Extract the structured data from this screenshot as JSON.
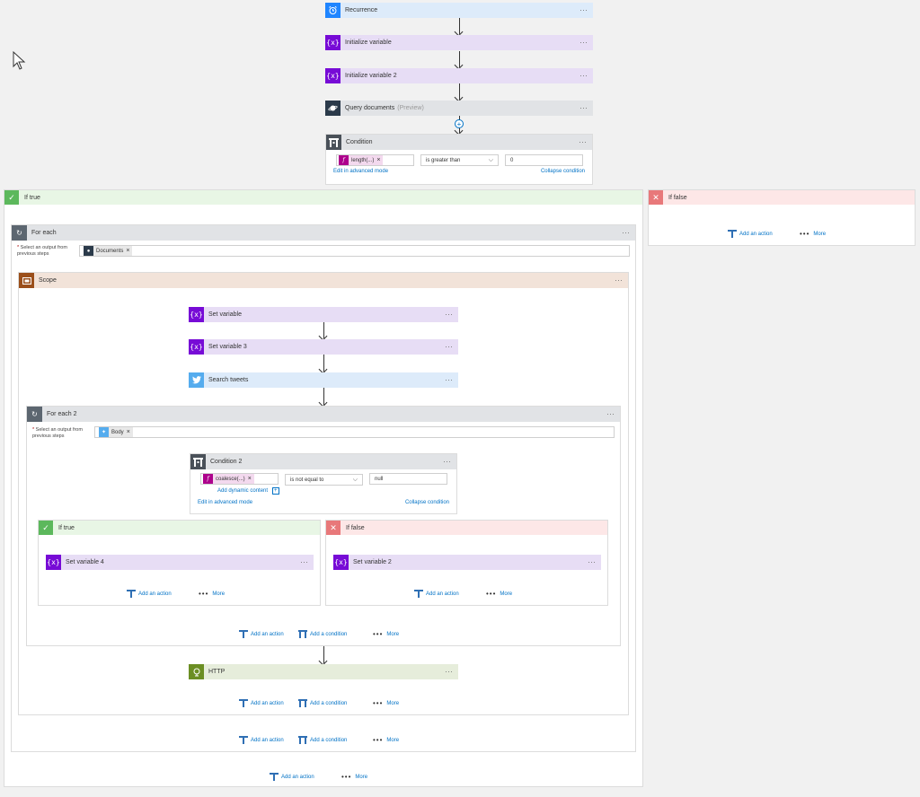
{
  "flow": {
    "recurrence": {
      "label": "Recurrence"
    },
    "init_var1": {
      "label": "Initialize variable"
    },
    "init_var2": {
      "label": "Initialize variable 2"
    },
    "query_docs": {
      "label": "Query documents",
      "tag": "(Preview)"
    },
    "condition": {
      "label": "Condition",
      "left_token": "length(...)",
      "operator": "is greater than",
      "right_value": "0",
      "edit_advanced": "Edit in advanced mode",
      "collapse": "Collapse condition"
    }
  },
  "if_true": {
    "label": "If true",
    "for_each": {
      "label": "For each",
      "select_label_1": "Select an output from",
      "select_label_2": "previous steps",
      "required_mark": "*",
      "token": "Documents",
      "scope": {
        "label": "Scope",
        "set_var": {
          "label": "Set variable"
        },
        "set_var3": {
          "label": "Set variable 3"
        },
        "search_tweets": {
          "label": "Search tweets"
        },
        "for_each2": {
          "label": "For each 2",
          "select_label_1": "Select an output from",
          "select_label_2": "previous steps",
          "token": "Body",
          "condition2": {
            "label": "Condition 2",
            "left_token": "coalesce(...)",
            "operator": "is not equal to",
            "right_value": "null",
            "add_dynamic": "Add dynamic content",
            "edit_advanced": "Edit in advanced mode",
            "collapse": "Collapse condition"
          },
          "inner_true": {
            "label": "If true",
            "action": "Set variable 4"
          },
          "inner_false": {
            "label": "If false",
            "action": "Set variable 2"
          }
        },
        "http": {
          "label": "HTTP"
        }
      }
    }
  },
  "if_false": {
    "label": "If false"
  },
  "actions": {
    "add_action": "Add an action",
    "add_condition": "Add a condition",
    "more": "More",
    "more_dots": "•••",
    "close_x": "×",
    "ellipsis": "···"
  },
  "colors": {
    "variable": "#770bd6",
    "variable_bg": "#e7ddf5",
    "twitter": "#55acee",
    "http": "#6b8e23",
    "scope": "#9b4f1b",
    "true_green": "#5cb85c",
    "false_red": "#e8787a",
    "link_blue": "#0072c6"
  },
  "icons": {
    "recurrence": "alarm-clock-icon",
    "variable": "curly-braces-x-icon",
    "documentdb": "planet-icon",
    "condition": "condition-icon",
    "foreach": "loop-icon",
    "scope": "scope-icon",
    "twitter": "bird-icon",
    "http": "globe-icon",
    "check": "check-icon",
    "close": "x-icon"
  }
}
